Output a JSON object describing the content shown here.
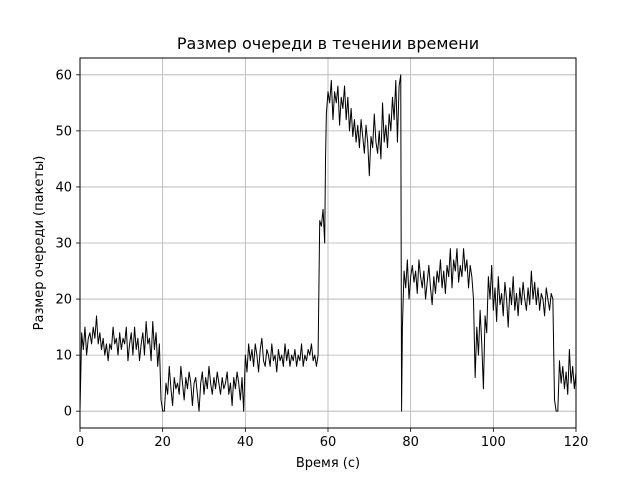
{
  "chart_data": {
    "type": "line",
    "title": "Размер очереди в течении времени",
    "xlabel": "Время (с)",
    "ylabel": "Размер очереди (пакеты)",
    "xlim": [
      0,
      120
    ],
    "ylim": [
      -3,
      63
    ],
    "xticks": [
      0,
      20,
      40,
      60,
      80,
      100,
      120
    ],
    "yticks": [
      0,
      10,
      20,
      30,
      40,
      50,
      60
    ],
    "grid": true,
    "line_color": "#000000",
    "series": [
      {
        "values": [
          [
            0,
            0
          ],
          [
            0.4,
            14
          ],
          [
            0.8,
            11
          ],
          [
            1.2,
            15
          ],
          [
            1.6,
            10
          ],
          [
            2,
            13
          ],
          [
            2.4,
            14
          ],
          [
            2.8,
            12
          ],
          [
            3.2,
            15
          ],
          [
            3.6,
            13
          ],
          [
            4,
            17
          ],
          [
            4.4,
            12
          ],
          [
            4.8,
            14
          ],
          [
            5.2,
            11
          ],
          [
            5.6,
            13
          ],
          [
            6,
            10
          ],
          [
            6.4,
            12
          ],
          [
            6.8,
            9
          ],
          [
            7.2,
            12
          ],
          [
            7.6,
            11
          ],
          [
            8,
            15
          ],
          [
            8.4,
            12
          ],
          [
            8.8,
            13
          ],
          [
            9.2,
            10
          ],
          [
            9.6,
            14
          ],
          [
            10,
            11
          ],
          [
            10.4,
            13
          ],
          [
            10.8,
            12
          ],
          [
            11.2,
            15
          ],
          [
            11.6,
            9
          ],
          [
            12,
            12
          ],
          [
            12.4,
            14
          ],
          [
            12.8,
            10
          ],
          [
            13.2,
            15
          ],
          [
            13.6,
            11
          ],
          [
            14,
            13
          ],
          [
            14.4,
            9
          ],
          [
            14.8,
            12
          ],
          [
            15.2,
            14
          ],
          [
            15.6,
            10
          ],
          [
            16,
            16
          ],
          [
            16.4,
            12
          ],
          [
            16.8,
            13
          ],
          [
            17.2,
            9
          ],
          [
            17.6,
            16
          ],
          [
            18,
            11
          ],
          [
            18.4,
            14
          ],
          [
            18.8,
            8
          ],
          [
            19.2,
            12
          ],
          [
            19.6,
            2
          ],
          [
            20,
            0
          ],
          [
            20.4,
            0
          ],
          [
            20.8,
            5
          ],
          [
            21.2,
            3
          ],
          [
            21.6,
            8
          ],
          [
            22,
            4
          ],
          [
            22.4,
            1
          ],
          [
            22.8,
            6
          ],
          [
            23.2,
            4
          ],
          [
            23.6,
            5
          ],
          [
            24,
            3
          ],
          [
            24.4,
            8
          ],
          [
            24.8,
            5
          ],
          [
            25.2,
            2
          ],
          [
            25.6,
            6
          ],
          [
            26,
            4
          ],
          [
            26.4,
            7
          ],
          [
            26.8,
            5
          ],
          [
            27.2,
            1
          ],
          [
            27.6,
            5
          ],
          [
            28,
            6
          ],
          [
            28.4,
            3
          ],
          [
            28.8,
            0
          ],
          [
            29.2,
            5
          ],
          [
            29.6,
            7
          ],
          [
            30,
            3
          ],
          [
            30.4,
            6
          ],
          [
            30.8,
            4
          ],
          [
            31.2,
            8
          ],
          [
            31.6,
            5
          ],
          [
            32,
            3
          ],
          [
            32.4,
            6
          ],
          [
            32.8,
            4
          ],
          [
            33.2,
            7
          ],
          [
            33.6,
            5
          ],
          [
            34,
            3
          ],
          [
            34.4,
            6
          ],
          [
            34.8,
            4
          ],
          [
            35.2,
            5
          ],
          [
            35.6,
            7
          ],
          [
            36,
            3
          ],
          [
            36.4,
            5
          ],
          [
            36.8,
            1
          ],
          [
            37.2,
            6
          ],
          [
            37.6,
            4
          ],
          [
            38,
            7
          ],
          [
            38.4,
            5
          ],
          [
            38.8,
            2
          ],
          [
            39.2,
            6
          ],
          [
            39.6,
            0
          ],
          [
            40,
            10
          ],
          [
            40.4,
            7
          ],
          [
            40.8,
            12
          ],
          [
            41.2,
            9
          ],
          [
            41.6,
            11
          ],
          [
            42,
            8
          ],
          [
            42.4,
            12
          ],
          [
            42.8,
            10
          ],
          [
            43.2,
            7
          ],
          [
            43.6,
            11
          ],
          [
            44,
            13
          ],
          [
            44.4,
            9
          ],
          [
            44.8,
            8
          ],
          [
            45.2,
            11
          ],
          [
            45.6,
            10
          ],
          [
            46,
            8
          ],
          [
            46.4,
            12
          ],
          [
            46.8,
            9
          ],
          [
            47.2,
            10
          ],
          [
            47.6,
            7
          ],
          [
            48,
            11
          ],
          [
            48.4,
            9
          ],
          [
            48.8,
            10
          ],
          [
            49.2,
            8
          ],
          [
            49.6,
            12
          ],
          [
            50,
            9
          ],
          [
            50.4,
            11
          ],
          [
            50.8,
            8
          ],
          [
            51.2,
            10
          ],
          [
            51.6,
            9
          ],
          [
            52,
            11
          ],
          [
            52.4,
            8
          ],
          [
            52.8,
            10
          ],
          [
            53.2,
            9
          ],
          [
            53.6,
            12
          ],
          [
            54,
            8
          ],
          [
            54.4,
            10
          ],
          [
            54.8,
            9
          ],
          [
            55.2,
            11
          ],
          [
            55.6,
            10
          ],
          [
            56,
            12
          ],
          [
            56.4,
            9
          ],
          [
            56.8,
            10
          ],
          [
            57.2,
            8
          ],
          [
            57.6,
            10
          ],
          [
            58,
            34
          ],
          [
            58.4,
            33
          ],
          [
            58.8,
            36
          ],
          [
            59.2,
            30
          ],
          [
            59.4,
            45
          ],
          [
            59.6,
            53
          ],
          [
            60,
            57
          ],
          [
            60.4,
            55
          ],
          [
            60.8,
            59
          ],
          [
            61.2,
            52
          ],
          [
            61.6,
            57
          ],
          [
            62,
            55
          ],
          [
            62.4,
            58
          ],
          [
            62.8,
            51
          ],
          [
            63.2,
            56
          ],
          [
            63.6,
            54
          ],
          [
            64,
            58
          ],
          [
            64.4,
            52
          ],
          [
            64.8,
            56
          ],
          [
            65.2,
            50
          ],
          [
            65.6,
            54
          ],
          [
            66,
            49
          ],
          [
            66.4,
            52
          ],
          [
            66.8,
            48
          ],
          [
            67.2,
            51
          ],
          [
            67.6,
            47
          ],
          [
            68,
            52
          ],
          [
            68.4,
            49
          ],
          [
            68.8,
            46
          ],
          [
            69.2,
            51
          ],
          [
            69.6,
            48
          ],
          [
            70,
            42
          ],
          [
            70.4,
            49
          ],
          [
            70.8,
            47
          ],
          [
            71.2,
            53
          ],
          [
            71.6,
            48
          ],
          [
            72,
            46
          ],
          [
            72.4,
            50
          ],
          [
            72.8,
            45
          ],
          [
            73.2,
            55
          ],
          [
            73.6,
            48
          ],
          [
            74,
            51
          ],
          [
            74.4,
            47
          ],
          [
            74.8,
            53
          ],
          [
            75.2,
            50
          ],
          [
            75.6,
            56
          ],
          [
            76,
            52
          ],
          [
            76.4,
            59
          ],
          [
            76.8,
            48
          ],
          [
            77.2,
            58
          ],
          [
            77.6,
            60
          ],
          [
            77.8,
            0
          ],
          [
            78,
            15
          ],
          [
            78.4,
            25
          ],
          [
            78.8,
            22
          ],
          [
            79.2,
            27
          ],
          [
            79.6,
            20
          ],
          [
            80,
            24
          ],
          [
            80.4,
            26
          ],
          [
            80.8,
            23
          ],
          [
            81.2,
            25
          ],
          [
            81.6,
            21
          ],
          [
            82,
            27
          ],
          [
            82.4,
            24
          ],
          [
            82.8,
            22
          ],
          [
            83.2,
            25
          ],
          [
            83.6,
            20
          ],
          [
            84,
            23
          ],
          [
            84.4,
            26
          ],
          [
            84.8,
            22
          ],
          [
            85.2,
            19
          ],
          [
            85.6,
            24
          ],
          [
            86,
            21
          ],
          [
            86.4,
            25
          ],
          [
            86.8,
            23
          ],
          [
            87.2,
            27
          ],
          [
            87.6,
            22
          ],
          [
            88,
            25
          ],
          [
            88.4,
            21
          ],
          [
            88.8,
            26
          ],
          [
            89.2,
            24
          ],
          [
            89.6,
            29
          ],
          [
            90,
            22
          ],
          [
            90.4,
            27
          ],
          [
            90.8,
            25
          ],
          [
            91.2,
            29
          ],
          [
            91.6,
            23
          ],
          [
            92,
            26
          ],
          [
            92.4,
            24
          ],
          [
            92.8,
            29
          ],
          [
            93.2,
            25
          ],
          [
            93.6,
            27
          ],
          [
            94,
            22
          ],
          [
            94.4,
            26
          ],
          [
            94.8,
            24
          ],
          [
            95.2,
            20
          ],
          [
            95.6,
            6
          ],
          [
            96,
            15
          ],
          [
            96.4,
            10
          ],
          [
            96.8,
            18
          ],
          [
            97.2,
            12
          ],
          [
            97.6,
            4
          ],
          [
            98,
            17
          ],
          [
            98.4,
            14
          ],
          [
            98.8,
            24
          ],
          [
            99.2,
            20
          ],
          [
            99.6,
            26
          ],
          [
            100,
            18
          ],
          [
            100.4,
            22
          ],
          [
            100.8,
            16
          ],
          [
            101.2,
            24
          ],
          [
            101.6,
            19
          ],
          [
            102,
            21
          ],
          [
            102.4,
            17
          ],
          [
            102.8,
            23
          ],
          [
            103.2,
            20
          ],
          [
            103.6,
            15
          ],
          [
            104,
            22
          ],
          [
            104.4,
            19
          ],
          [
            104.8,
            24
          ],
          [
            105.2,
            18
          ],
          [
            105.6,
            21
          ],
          [
            106,
            17
          ],
          [
            106.4,
            22
          ],
          [
            106.8,
            19
          ],
          [
            107.2,
            23
          ],
          [
            107.6,
            20
          ],
          [
            108,
            18
          ],
          [
            108.4,
            22
          ],
          [
            108.8,
            19
          ],
          [
            109.2,
            25
          ],
          [
            109.6,
            20
          ],
          [
            110,
            23
          ],
          [
            110.4,
            19
          ],
          [
            110.8,
            22
          ],
          [
            111.2,
            18
          ],
          [
            111.6,
            21
          ],
          [
            112,
            20
          ],
          [
            112.4,
            17
          ],
          [
            112.8,
            22
          ],
          [
            113.2,
            20
          ],
          [
            113.6,
            18
          ],
          [
            114,
            21
          ],
          [
            114.4,
            20
          ],
          [
            114.8,
            2
          ],
          [
            115.2,
            0
          ],
          [
            115.6,
            0
          ],
          [
            116,
            9
          ],
          [
            116.4,
            5
          ],
          [
            116.8,
            8
          ],
          [
            117.2,
            4
          ],
          [
            117.6,
            7
          ],
          [
            118,
            3
          ],
          [
            118.4,
            11
          ],
          [
            118.8,
            5
          ],
          [
            119.2,
            8
          ],
          [
            119.6,
            4
          ],
          [
            120,
            7
          ]
        ]
      }
    ]
  }
}
